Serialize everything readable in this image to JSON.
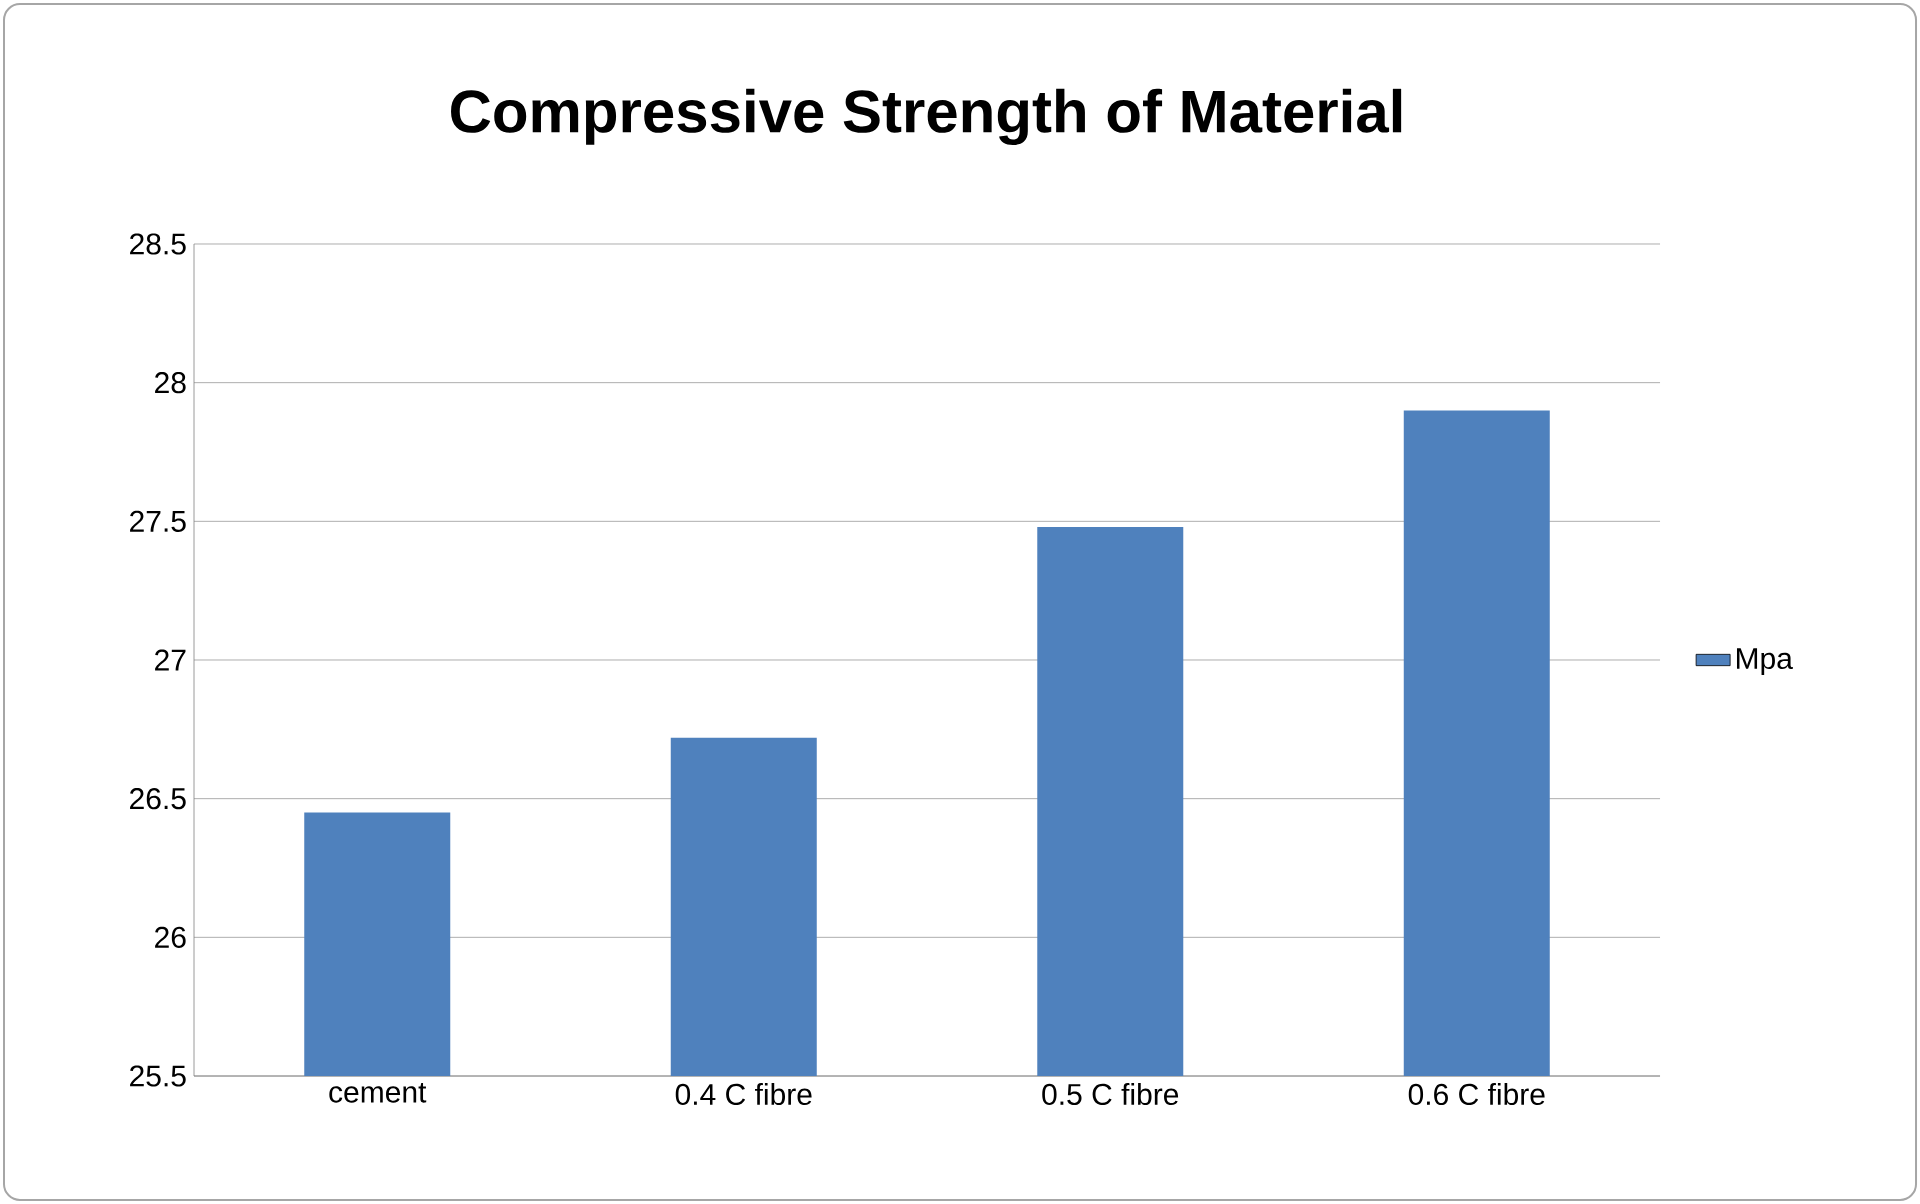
{
  "chart_data": {
    "type": "bar",
    "title": "Compressive Strength of Material",
    "categories": [
      "cement",
      "0.4 C fibre",
      "0.5 C fibre",
      "0.6 C fibre"
    ],
    "series": [
      {
        "name": "Mpa",
        "color": "#4f81bd",
        "values": [
          26.45,
          26.72,
          27.48,
          27.9
        ]
      }
    ],
    "ylim": [
      25.5,
      28.5
    ],
    "yticks": [
      25.5,
      26,
      26.5,
      27,
      27.5,
      28,
      28.5
    ],
    "grid": "y",
    "legend": "right"
  }
}
